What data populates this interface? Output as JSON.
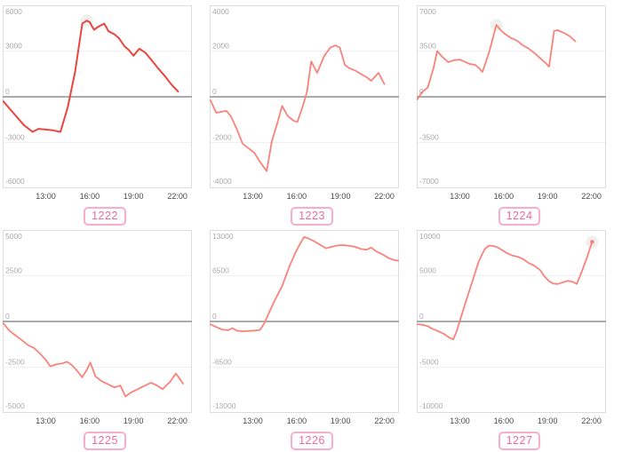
{
  "page": {
    "background": "#ffffff"
  },
  "style": {
    "plot_border": "#dddddd",
    "grid_color": "#f0f0f0",
    "zero_line_color": "#9e9e9e",
    "ytick_color": "#aaaaaa",
    "xtick_color": "#4a4a4a",
    "badge_border": "#f7afc8",
    "badge_text": "#ee6a9b",
    "hover_halo": "rgba(170,170,170,0.18)"
  },
  "chart_data": [
    {
      "type": "line",
      "badge": "1222",
      "line_color": "#e9463f",
      "line_width": 2,
      "xlim_hours": [
        10.05,
        23.0
      ],
      "xticks": [
        {
          "hour": 13,
          "label": "13:00"
        },
        {
          "hour": 16,
          "label": "16:00"
        },
        {
          "hour": 19,
          "label": "19:00"
        },
        {
          "hour": 22,
          "label": "22:00"
        }
      ],
      "ylim": [
        -6000,
        6000
      ],
      "yticks": [
        {
          "value": 6000,
          "label": "6000"
        },
        {
          "value": 3000,
          "label": "3000"
        },
        {
          "value": 0,
          "label": "0"
        },
        {
          "value": -3000,
          "label": "-3000"
        },
        {
          "value": -6000,
          "label": "-6000"
        }
      ],
      "points_hour_value": [
        [
          10.1,
          -300
        ],
        [
          10.5,
          -750
        ],
        [
          11.0,
          -1300
        ],
        [
          11.5,
          -1850
        ],
        [
          12.1,
          -2300
        ],
        [
          12.5,
          -2100
        ],
        [
          13.0,
          -2150
        ],
        [
          13.5,
          -2200
        ],
        [
          14.0,
          -2300
        ],
        [
          14.5,
          -700
        ],
        [
          15.0,
          1600
        ],
        [
          15.5,
          4800
        ],
        [
          15.8,
          5000
        ],
        [
          16.0,
          4900
        ],
        [
          16.3,
          4400
        ],
        [
          16.6,
          4600
        ],
        [
          17.0,
          4800
        ],
        [
          17.3,
          4300
        ],
        [
          17.7,
          4100
        ],
        [
          18.0,
          3850
        ],
        [
          18.4,
          3300
        ],
        [
          18.7,
          3050
        ],
        [
          19.0,
          2700
        ],
        [
          19.4,
          3150
        ],
        [
          19.8,
          2900
        ],
        [
          20.2,
          2450
        ],
        [
          20.7,
          1850
        ],
        [
          21.2,
          1300
        ],
        [
          21.6,
          800
        ],
        [
          22.05,
          350
        ]
      ],
      "hover_marker_hour_value": [
        15.8,
        5000
      ],
      "end_dot": false
    },
    {
      "type": "line",
      "badge": "1223",
      "line_color": "#f9837b",
      "line_width": 1.8,
      "xlim_hours": [
        10.05,
        23.0
      ],
      "xticks": [
        {
          "hour": 13,
          "label": "13:00"
        },
        {
          "hour": 16,
          "label": "16:00"
        },
        {
          "hour": 19,
          "label": "19:00"
        },
        {
          "hour": 22,
          "label": "22:00"
        }
      ],
      "ylim": [
        -4000,
        4000
      ],
      "yticks": [
        {
          "value": 4000,
          "label": "4000"
        },
        {
          "value": 2000,
          "label": "2000"
        },
        {
          "value": 0,
          "label": "0"
        },
        {
          "value": -2000,
          "label": "-2000"
        },
        {
          "value": -4000,
          "label": "-4000"
        }
      ],
      "points_hour_value": [
        [
          10.1,
          -150
        ],
        [
          10.5,
          -700
        ],
        [
          10.9,
          -650
        ],
        [
          11.2,
          -620
        ],
        [
          11.5,
          -850
        ],
        [
          11.9,
          -1400
        ],
        [
          12.3,
          -2050
        ],
        [
          12.7,
          -2250
        ],
        [
          13.1,
          -2450
        ],
        [
          13.5,
          -2850
        ],
        [
          13.95,
          -3250
        ],
        [
          14.3,
          -1950
        ],
        [
          14.7,
          -1100
        ],
        [
          15.0,
          -400
        ],
        [
          15.4,
          -850
        ],
        [
          15.8,
          -1050
        ],
        [
          16.05,
          -1100
        ],
        [
          16.4,
          -450
        ],
        [
          16.7,
          200
        ],
        [
          17.0,
          1550
        ],
        [
          17.4,
          1050
        ],
        [
          17.9,
          1800
        ],
        [
          18.3,
          2150
        ],
        [
          18.65,
          2250
        ],
        [
          18.95,
          2150
        ],
        [
          19.3,
          1400
        ],
        [
          19.6,
          1250
        ],
        [
          20.0,
          1150
        ],
        [
          20.4,
          1000
        ],
        [
          20.8,
          850
        ],
        [
          21.1,
          700
        ],
        [
          21.6,
          1050
        ],
        [
          22.0,
          550
        ]
      ],
      "hover_marker_hour_value": null,
      "end_dot": false
    },
    {
      "type": "line",
      "badge": "1224",
      "line_color": "#f9837b",
      "line_width": 1.8,
      "xlim_hours": [
        10.05,
        23.0
      ],
      "xticks": [
        {
          "hour": 13,
          "label": "13:00"
        },
        {
          "hour": 16,
          "label": "16:00"
        },
        {
          "hour": 19,
          "label": "19:00"
        },
        {
          "hour": 22,
          "label": "22:00"
        }
      ],
      "ylim": [
        -7000,
        7000
      ],
      "yticks": [
        {
          "value": 7000,
          "label": "7000"
        },
        {
          "value": 3500,
          "label": "3500"
        },
        {
          "value": 0,
          "label": "0"
        },
        {
          "value": -3500,
          "label": "-3500"
        },
        {
          "value": -7000,
          "label": "-7000"
        }
      ],
      "points_hour_value": [
        [
          10.1,
          -200
        ],
        [
          10.4,
          350
        ],
        [
          10.8,
          700
        ],
        [
          11.2,
          2200
        ],
        [
          11.45,
          3500
        ],
        [
          11.8,
          3050
        ],
        [
          12.2,
          2650
        ],
        [
          12.6,
          2800
        ],
        [
          13.0,
          2850
        ],
        [
          13.3,
          2700
        ],
        [
          13.7,
          2500
        ],
        [
          14.05,
          2450
        ],
        [
          14.3,
          2200
        ],
        [
          14.55,
          1900
        ],
        [
          15.0,
          3400
        ],
        [
          15.5,
          5500
        ],
        [
          15.8,
          5100
        ],
        [
          16.1,
          4800
        ],
        [
          16.5,
          4500
        ],
        [
          16.9,
          4300
        ],
        [
          17.3,
          3950
        ],
        [
          17.7,
          3700
        ],
        [
          18.1,
          3350
        ],
        [
          18.5,
          2950
        ],
        [
          18.9,
          2550
        ],
        [
          19.1,
          2300
        ],
        [
          19.45,
          5050
        ],
        [
          19.7,
          5100
        ],
        [
          20.1,
          4900
        ],
        [
          20.5,
          4650
        ],
        [
          20.9,
          4250
        ]
      ],
      "hover_marker_hour_value": [
        15.5,
        5500
      ],
      "end_dot": false
    },
    {
      "type": "line",
      "badge": "1225",
      "line_color": "#f9837b",
      "line_width": 1.8,
      "xlim_hours": [
        10.05,
        23.0
      ],
      "xticks": [
        {
          "hour": 13,
          "label": "13:00"
        },
        {
          "hour": 16,
          "label": "16:00"
        },
        {
          "hour": 19,
          "label": "19:00"
        },
        {
          "hour": 22,
          "label": "22:00"
        }
      ],
      "ylim": [
        -5000,
        5000
      ],
      "yticks": [
        {
          "value": 5000,
          "label": "5000"
        },
        {
          "value": 2500,
          "label": "2500"
        },
        {
          "value": 0,
          "label": "0"
        },
        {
          "value": -2500,
          "label": "-2500"
        },
        {
          "value": -5000,
          "label": "-5000"
        }
      ],
      "points_hour_value": [
        [
          10.1,
          -100
        ],
        [
          10.5,
          -500
        ],
        [
          11.0,
          -800
        ],
        [
          11.4,
          -1050
        ],
        [
          11.8,
          -1300
        ],
        [
          12.2,
          -1450
        ],
        [
          12.6,
          -1750
        ],
        [
          13.0,
          -2100
        ],
        [
          13.3,
          -2450
        ],
        [
          13.7,
          -2350
        ],
        [
          14.1,
          -2300
        ],
        [
          14.45,
          -2200
        ],
        [
          14.8,
          -2400
        ],
        [
          15.2,
          -2750
        ],
        [
          15.5,
          -3050
        ],
        [
          15.8,
          -2650
        ],
        [
          16.05,
          -2250
        ],
        [
          16.4,
          -3000
        ],
        [
          16.8,
          -3250
        ],
        [
          17.3,
          -3450
        ],
        [
          17.7,
          -3600
        ],
        [
          18.1,
          -3500
        ],
        [
          18.45,
          -4100
        ],
        [
          18.8,
          -3900
        ],
        [
          19.3,
          -3700
        ],
        [
          19.8,
          -3500
        ],
        [
          20.2,
          -3350
        ],
        [
          20.6,
          -3500
        ],
        [
          21.0,
          -3700
        ],
        [
          21.5,
          -3300
        ],
        [
          21.9,
          -2850
        ],
        [
          22.4,
          -3400
        ]
      ],
      "hover_marker_hour_value": null,
      "end_dot": false
    },
    {
      "type": "line",
      "badge": "1226",
      "line_color": "#f9837b",
      "line_width": 1.8,
      "xlim_hours": [
        10.05,
        23.0
      ],
      "xticks": [
        {
          "hour": 13,
          "label": "13:00"
        },
        {
          "hour": 16,
          "label": "16:00"
        },
        {
          "hour": 19,
          "label": "19:00"
        },
        {
          "hour": 22,
          "label": "22:00"
        }
      ],
      "ylim": [
        -13000,
        13000
      ],
      "yticks": [
        {
          "value": 13000,
          "label": "13000"
        },
        {
          "value": 6500,
          "label": "6500"
        },
        {
          "value": 0,
          "label": "0"
        },
        {
          "value": -6500,
          "label": "-6500"
        },
        {
          "value": -13000,
          "label": "-13000"
        }
      ],
      "points_hour_value": [
        [
          10.1,
          -400
        ],
        [
          10.5,
          -800
        ],
        [
          10.9,
          -1150
        ],
        [
          11.3,
          -1250
        ],
        [
          11.6,
          -950
        ],
        [
          11.9,
          -1300
        ],
        [
          12.3,
          -1400
        ],
        [
          12.7,
          -1350
        ],
        [
          13.1,
          -1300
        ],
        [
          13.5,
          -1200
        ],
        [
          13.8,
          -200
        ],
        [
          14.1,
          1200
        ],
        [
          14.5,
          3000
        ],
        [
          15.0,
          5000
        ],
        [
          15.5,
          7800
        ],
        [
          15.9,
          9700
        ],
        [
          16.2,
          10900
        ],
        [
          16.5,
          12000
        ],
        [
          16.8,
          11800
        ],
        [
          17.2,
          11400
        ],
        [
          17.6,
          10900
        ],
        [
          18.0,
          10400
        ],
        [
          18.4,
          10600
        ],
        [
          18.8,
          10800
        ],
        [
          19.2,
          10850
        ],
        [
          19.6,
          10750
        ],
        [
          20.0,
          10600
        ],
        [
          20.4,
          10300
        ],
        [
          20.8,
          10200
        ],
        [
          21.1,
          10500
        ],
        [
          21.5,
          9900
        ],
        [
          21.9,
          9500
        ],
        [
          22.3,
          9000
        ],
        [
          22.7,
          8700
        ],
        [
          23.0,
          8650
        ]
      ],
      "hover_marker_hour_value": null,
      "end_dot": false
    },
    {
      "type": "line",
      "badge": "1227",
      "line_color": "#f9837b",
      "line_width": 1.8,
      "xlim_hours": [
        10.05,
        23.0
      ],
      "xticks": [
        {
          "hour": 13,
          "label": "13:00"
        },
        {
          "hour": 16,
          "label": "16:00"
        },
        {
          "hour": 19,
          "label": "19:00"
        },
        {
          "hour": 22,
          "label": "22:00"
        }
      ],
      "ylim": [
        -10000,
        10000
      ],
      "yticks": [
        {
          "value": 10000,
          "label": "10000"
        },
        {
          "value": 5000,
          "label": "5000"
        },
        {
          "value": 0,
          "label": "0"
        },
        {
          "value": -5000,
          "label": "-5000"
        },
        {
          "value": -10000,
          "label": "-10000"
        }
      ],
      "points_hour_value": [
        [
          10.1,
          -300
        ],
        [
          10.4,
          -350
        ],
        [
          10.8,
          -500
        ],
        [
          11.1,
          -800
        ],
        [
          11.5,
          -1050
        ],
        [
          11.9,
          -1350
        ],
        [
          12.3,
          -1800
        ],
        [
          12.55,
          -1950
        ],
        [
          12.8,
          -1000
        ],
        [
          13.1,
          600
        ],
        [
          13.5,
          2600
        ],
        [
          13.9,
          4600
        ],
        [
          14.3,
          6600
        ],
        [
          14.7,
          7900
        ],
        [
          15.0,
          8300
        ],
        [
          15.3,
          8250
        ],
        [
          15.6,
          8100
        ],
        [
          15.9,
          7800
        ],
        [
          16.2,
          7500
        ],
        [
          16.6,
          7200
        ],
        [
          17.0,
          7050
        ],
        [
          17.35,
          6800
        ],
        [
          17.7,
          6400
        ],
        [
          18.1,
          6100
        ],
        [
          18.5,
          5600
        ],
        [
          18.8,
          4900
        ],
        [
          19.1,
          4400
        ],
        [
          19.4,
          4150
        ],
        [
          19.7,
          4100
        ],
        [
          20.0,
          4250
        ],
        [
          20.4,
          4450
        ],
        [
          20.7,
          4350
        ],
        [
          21.0,
          4100
        ],
        [
          21.4,
          5700
        ],
        [
          21.7,
          7000
        ],
        [
          22.05,
          8700
        ]
      ],
      "hover_marker_hour_value": [
        22.05,
        8700
      ],
      "end_dot": true
    }
  ]
}
